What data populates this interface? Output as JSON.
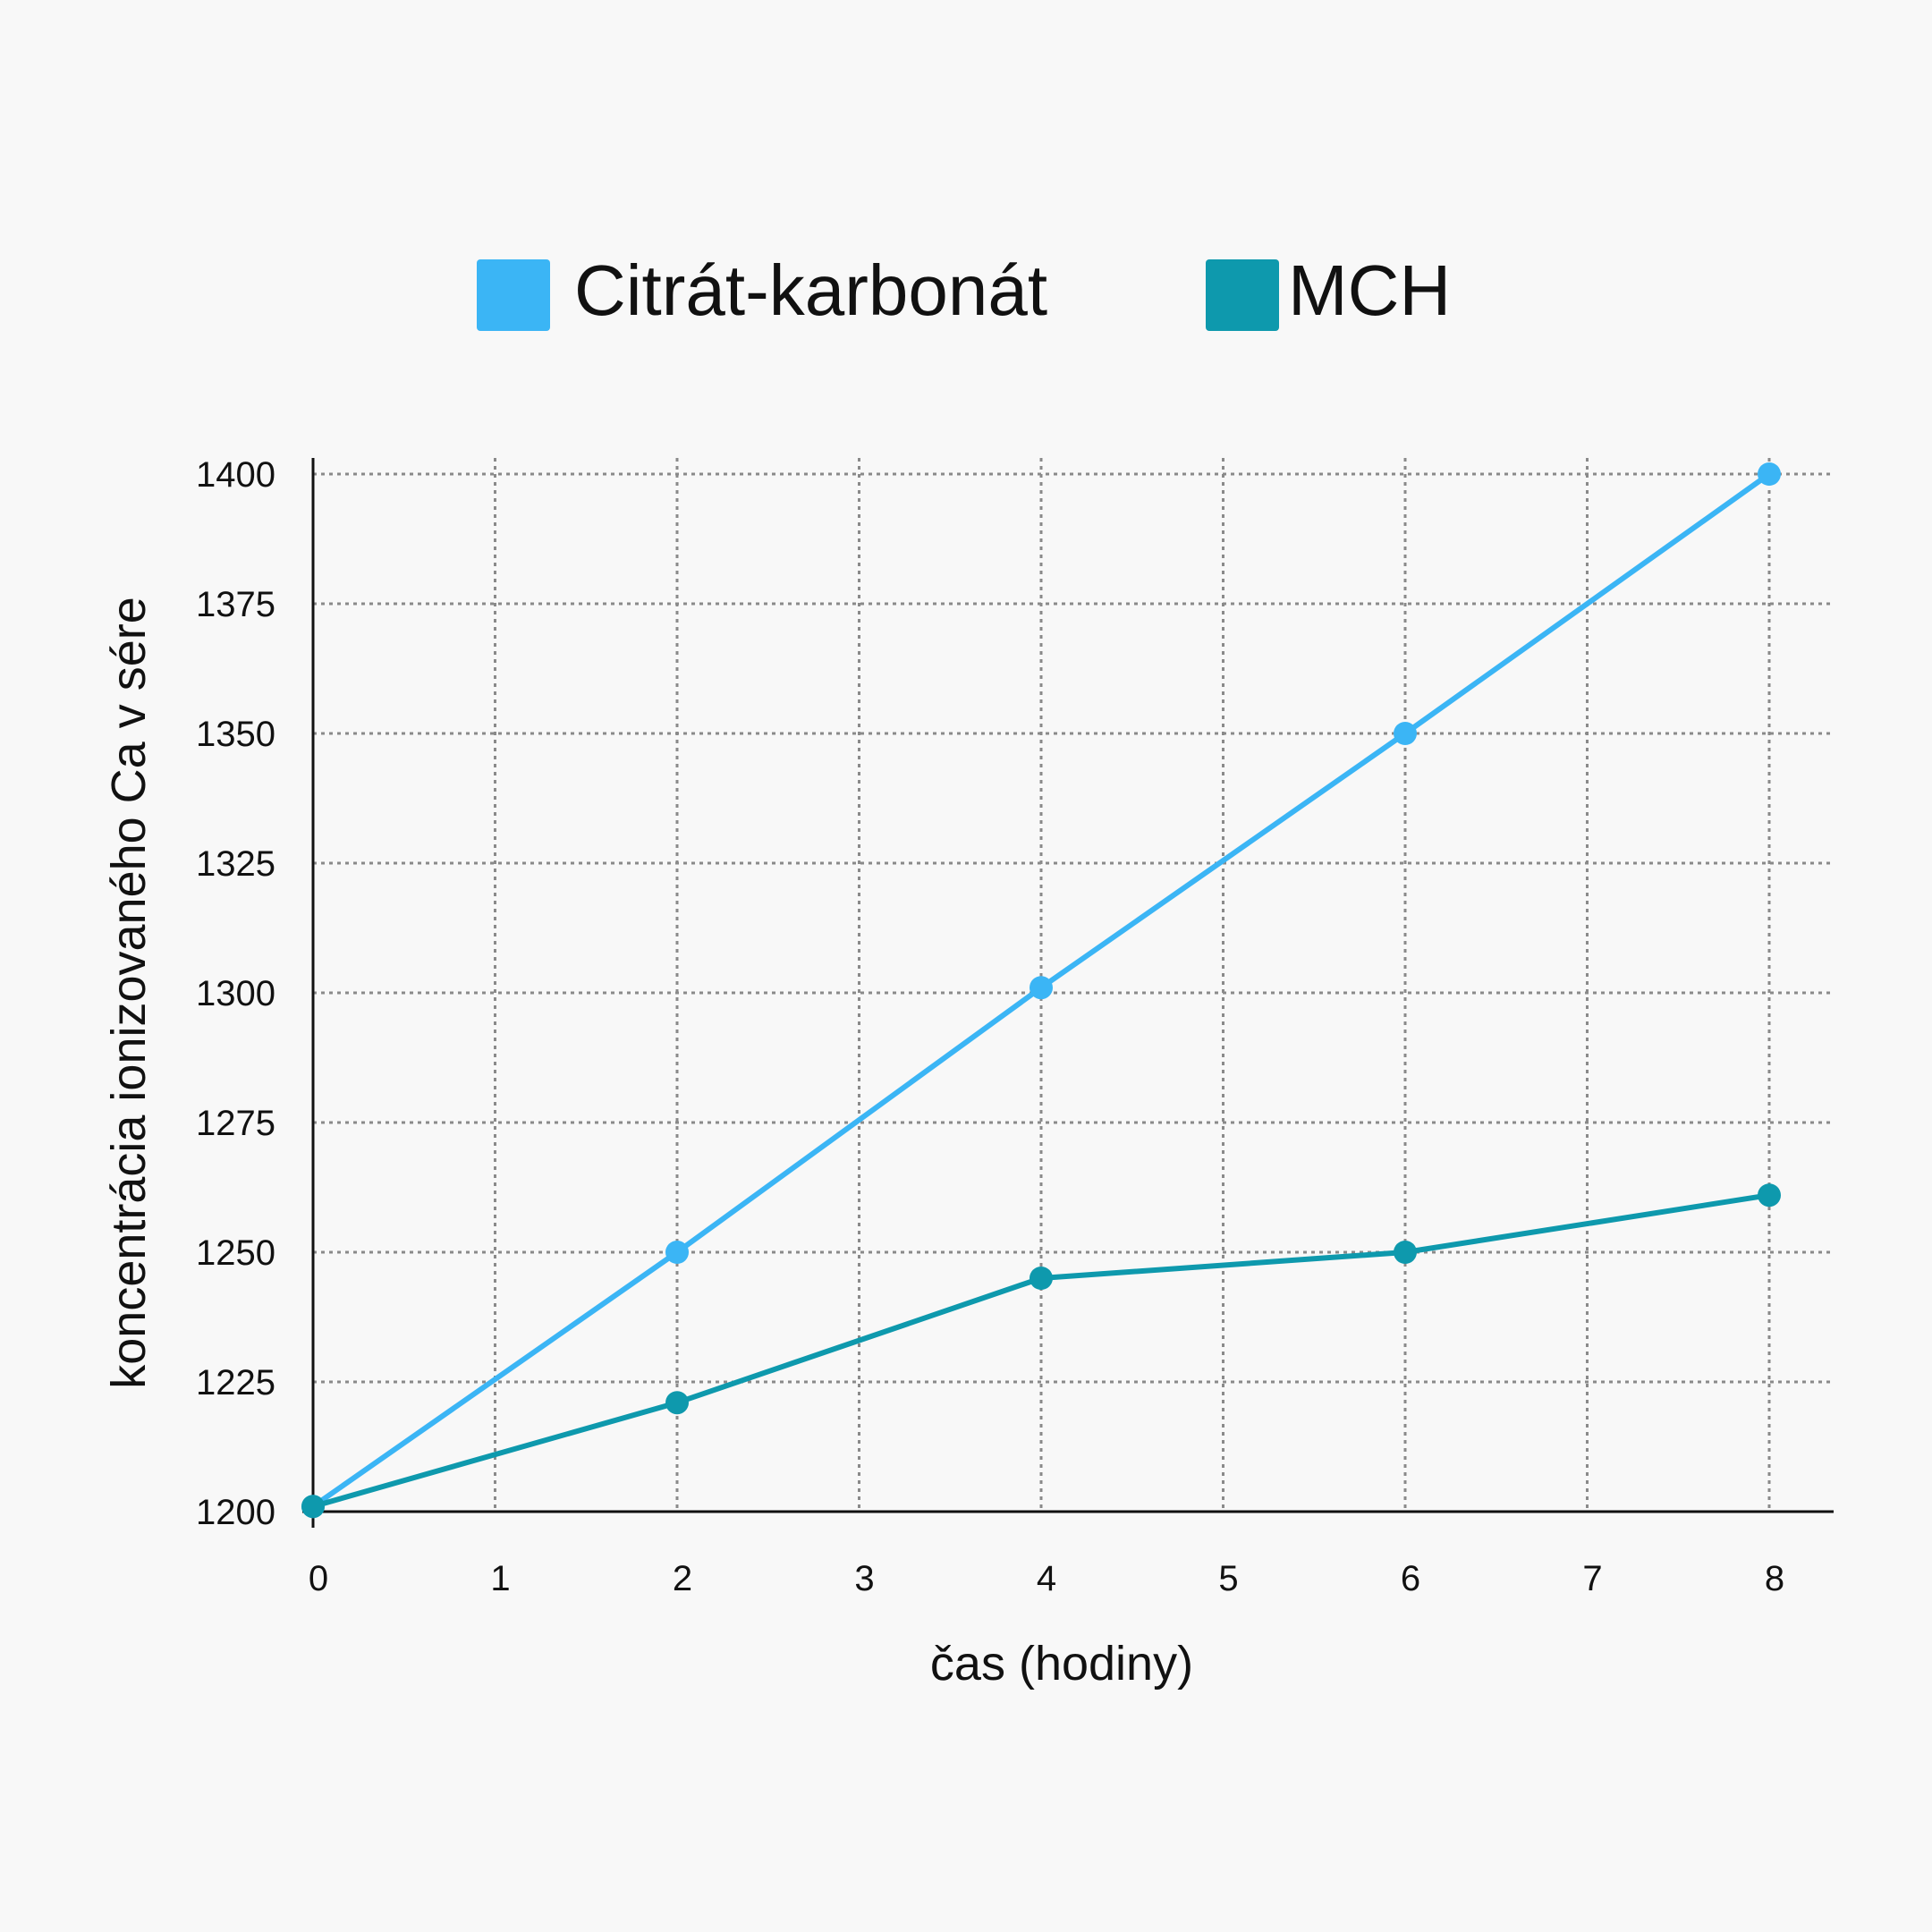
{
  "chart_data": {
    "type": "line",
    "title": "",
    "xlabel": "čas (hodiny)",
    "ylabel": "koncentrácia ionizovaného Ca v sére",
    "x_ticks": [
      "0",
      "1",
      "2",
      "3",
      "4",
      "5",
      "6",
      "7",
      "8"
    ],
    "y_ticks": [
      "1200",
      "1225",
      "1250",
      "1275",
      "1300",
      "1325",
      "1350",
      "1375",
      "1400"
    ],
    "xlim": [
      0,
      8
    ],
    "ylim": [
      1200,
      1400
    ],
    "grid": true,
    "legend_position": "top",
    "series": [
      {
        "name": "Citrát-karbonát",
        "color": "#3bb5f5",
        "x": [
          0,
          2,
          4,
          6,
          8
        ],
        "values": [
          1201,
          1250,
          1301,
          1350,
          1400
        ]
      },
      {
        "name": "MCH",
        "color": "#0e99ad",
        "x": [
          0,
          2,
          4,
          6,
          8
        ],
        "values": [
          1201,
          1221,
          1245,
          1250,
          1261
        ]
      }
    ]
  }
}
